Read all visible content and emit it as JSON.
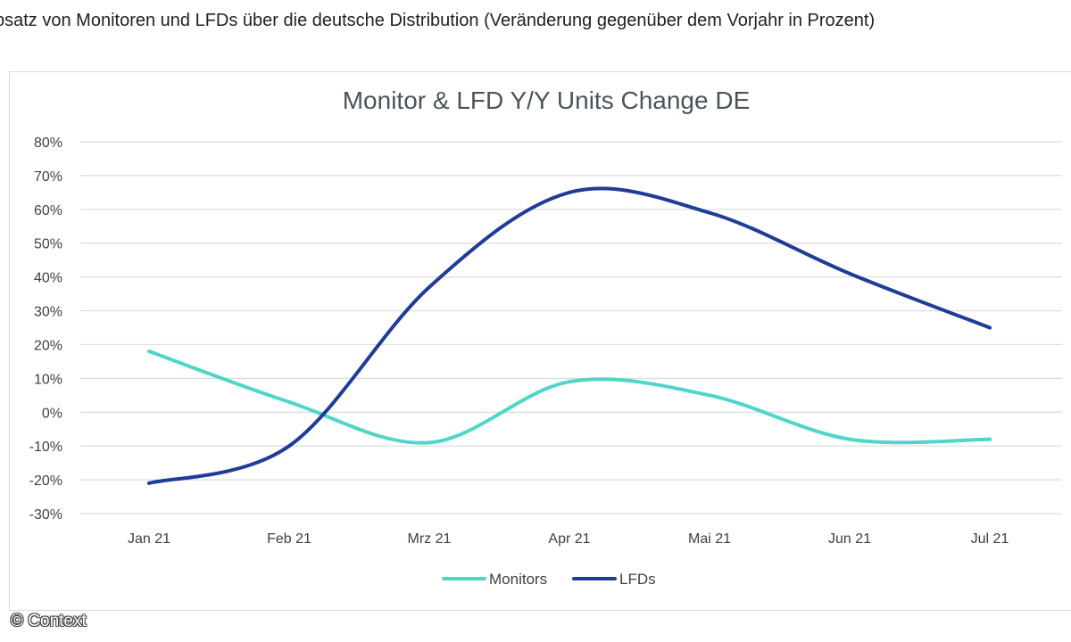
{
  "caption": "bsatz von Monitoren und LFDs über die deutsche Distribution (Veränderung gegenüber dem Vorjahr in Prozent)",
  "credit": "© Context",
  "colors": {
    "monitors": "#4fd6c8",
    "lfds": "#1f3c96",
    "grid": "#d9dcde",
    "axis_text": "#404040",
    "title": "#4a5459"
  },
  "chart_data": {
    "type": "line",
    "title": "Monitor & LFD Y/Y Units Change DE",
    "xlabel": "",
    "ylabel": "",
    "categories": [
      "Jan 21",
      "Feb 21",
      "Mrz 21",
      "Apr 21",
      "Mai 21",
      "Jun 21",
      "Jul 21"
    ],
    "series": [
      {
        "name": "Monitors",
        "values": [
          18,
          3,
          -9,
          9,
          5,
          -8,
          -8
        ]
      },
      {
        "name": "LFDs",
        "values": [
          -21,
          -10,
          37,
          65,
          59,
          41,
          25
        ]
      }
    ],
    "ylim": [
      -30,
      80
    ],
    "yticks": [
      -30,
      -20,
      -10,
      0,
      10,
      20,
      30,
      40,
      50,
      60,
      70,
      80
    ],
    "ytick_format": "percent",
    "grid": true,
    "smooth": true,
    "legend_position": "bottom"
  }
}
